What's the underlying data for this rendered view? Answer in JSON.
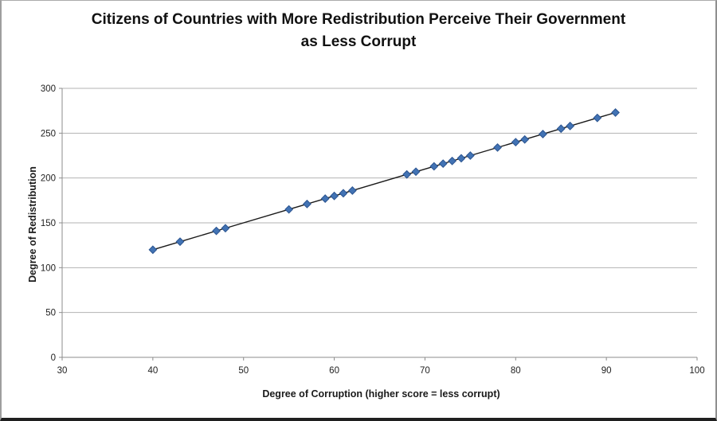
{
  "chart_data": {
    "type": "scatter",
    "title": "Citizens of Countries with More Redistribution Perceive Their Government as Less Corrupt",
    "title_lines": [
      "Citizens of Countries with More Redistribution Perceive Their Government",
      "as Less Corrupt"
    ],
    "xlabel": "Degree of Corruption (higher score = less corrupt)",
    "ylabel": "Degree of Redistribution",
    "xlim": [
      30,
      100
    ],
    "ylim": [
      0,
      300
    ],
    "x_ticks": [
      30,
      40,
      50,
      60,
      70,
      80,
      90,
      100
    ],
    "y_ticks": [
      0,
      50,
      100,
      150,
      200,
      250,
      300
    ],
    "grid": "horizontal-only",
    "legend": "none",
    "has_trendline": true,
    "points": [
      [
        40,
        120
      ],
      [
        43,
        129
      ],
      [
        47,
        141
      ],
      [
        48,
        144
      ],
      [
        55,
        165
      ],
      [
        57,
        171
      ],
      [
        59,
        177
      ],
      [
        60,
        180
      ],
      [
        61,
        183
      ],
      [
        62,
        186
      ],
      [
        68,
        204
      ],
      [
        69,
        207
      ],
      [
        71,
        213
      ],
      [
        72,
        216
      ],
      [
        73,
        219
      ],
      [
        74,
        222
      ],
      [
        75,
        225
      ],
      [
        78,
        234
      ],
      [
        80,
        240
      ],
      [
        81,
        243
      ],
      [
        83,
        249
      ],
      [
        85,
        255
      ],
      [
        86,
        258
      ],
      [
        89,
        267
      ],
      [
        91,
        273
      ]
    ],
    "colors": {
      "marker_fill": "#4273B4",
      "marker_stroke": "#2B5490",
      "trendline": "#1a1a1a",
      "gridline": "#b3b3b3",
      "axis": "#8c8c8c",
      "tick_label": "#1f1f1f",
      "title": "#111111"
    }
  }
}
